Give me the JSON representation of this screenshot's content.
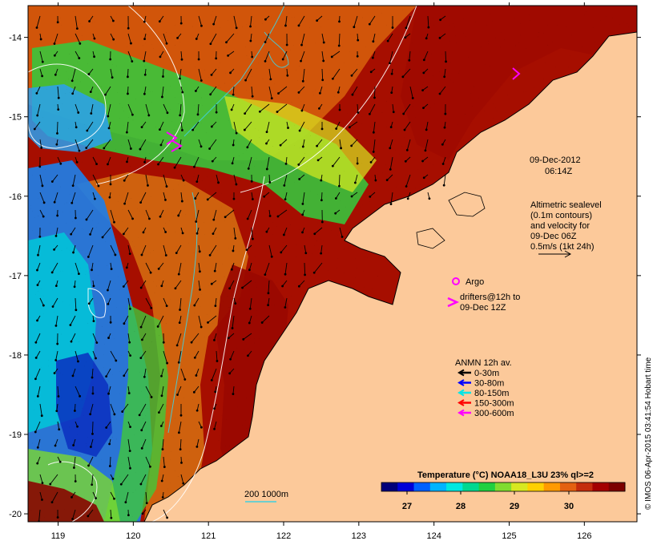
{
  "map": {
    "lon_ticks": [
      "119",
      "120",
      "121",
      "122",
      "123",
      "124",
      "125",
      "126"
    ],
    "lat_ticks": [
      "-14",
      "-15",
      "-16",
      "-17",
      "-18",
      "-19",
      "-20"
    ],
    "lon_range": [
      118.6,
      126.7
    ],
    "lat_range": [
      -20.1,
      -13.6
    ]
  },
  "header": {
    "date": "09-Dec-2012",
    "time": "06:14Z"
  },
  "altimetry_note": [
    "Altimetric sealevel",
    "(0.1m contours)",
    "and velocity for",
    "09-Dec 06Z",
    "0.5m/s (1kt 24h)"
  ],
  "legend": {
    "argo_label": "Argo",
    "drifters_label_line1": "drifters@12h to",
    "drifters_label_line2": "09-Dec 12Z",
    "anmn_title": "ANMN 12h av.",
    "anmn_items": [
      {
        "label": "0-30m",
        "color": "#000000"
      },
      {
        "label": "30-80m",
        "color": "#0000ff"
      },
      {
        "label": "80-150m",
        "color": "#00e5e5"
      },
      {
        "label": "150-300m",
        "color": "#ff0000"
      },
      {
        "label": "300-600m",
        "color": "#ff00ff"
      }
    ]
  },
  "colorbar": {
    "title": "Temperature (°C) NOAA18_L3U 23% ql>=2",
    "ticks": [
      "27",
      "28",
      "29",
      "30"
    ],
    "colors": [
      "#00007a",
      "#0000d8",
      "#0060ff",
      "#00b4ff",
      "#00e8e0",
      "#00d890",
      "#20d040",
      "#80dc30",
      "#d8e820",
      "#ffd000",
      "#ff9a00",
      "#e46010",
      "#c42c0c",
      "#a40000",
      "#7c0000"
    ]
  },
  "isobath_label": "200  1000m",
  "stamp": "© IMOS 06-Apr-2015 03:41:54 Hobart time",
  "colors": {
    "land": "#fcc99a",
    "warm": "#a60e00",
    "orange": "#d8620c",
    "cool_blue": "#1f7ee6",
    "green": "#35c83c"
  }
}
